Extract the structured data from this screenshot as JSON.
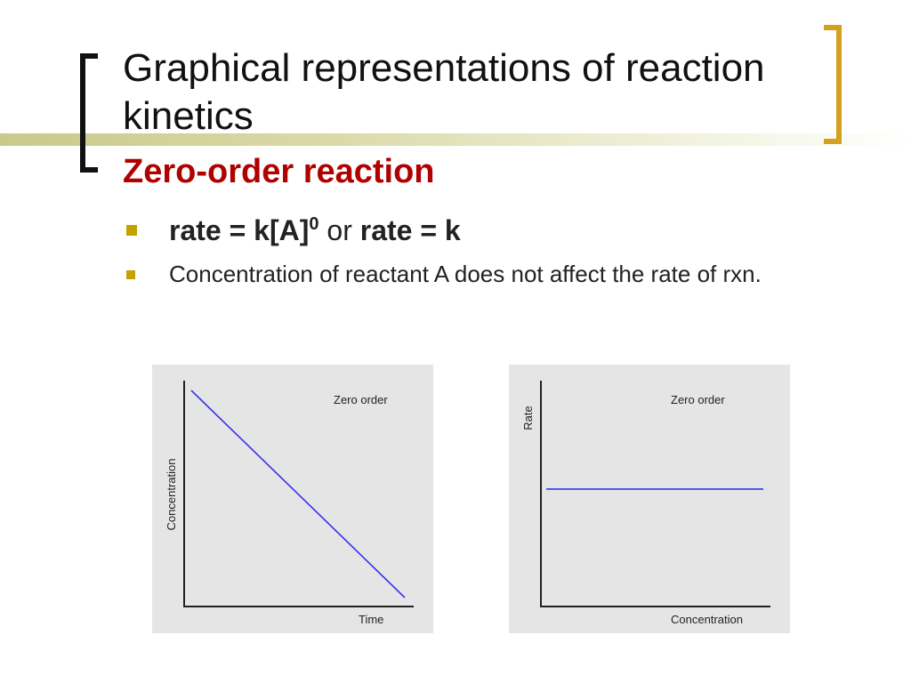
{
  "slide": {
    "title": "Graphical representations of reaction kinetics",
    "subtitle": "Zero-order reaction",
    "bullet1": {
      "part1": "rate = k[A]",
      "superscript": "0",
      "connector": " or ",
      "part2": "rate = k"
    },
    "bullet2": "Concentration of reactant A does not affect the rate of rxn.",
    "colors": {
      "subtitle": "#b00000",
      "bullet_marker": "#c4a000",
      "right_bracket": "#d4a020",
      "line": "#3333ee"
    }
  },
  "chart_data": [
    {
      "type": "line",
      "annotation": "Zero order",
      "xlabel": "Time",
      "ylabel": "Concentration",
      "series": [
        {
          "x": [
            0,
            1
          ],
          "y": [
            1,
            0
          ]
        }
      ],
      "xlim": [
        0,
        1
      ],
      "ylim": [
        0,
        1.03
      ],
      "grid": false
    },
    {
      "type": "line",
      "annotation": "Zero order",
      "xlabel": "Concentration",
      "ylabel": "Rate",
      "series": [
        {
          "x": [
            0,
            1
          ],
          "y": [
            0.52,
            0.52
          ]
        }
      ],
      "xlim": [
        0,
        1
      ],
      "ylim": [
        0,
        1
      ],
      "grid": false
    }
  ]
}
